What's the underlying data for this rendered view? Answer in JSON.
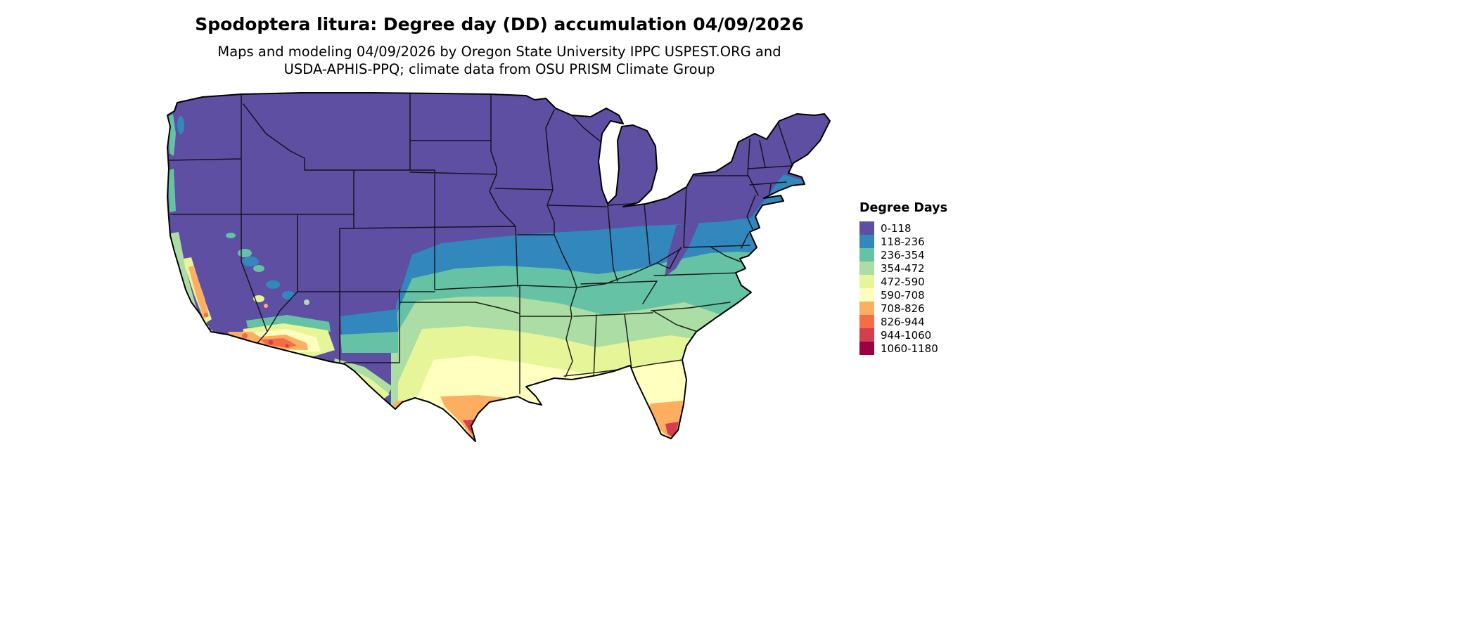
{
  "title": "Spodoptera litura: Degree day (DD) accumulation 04/09/2026",
  "subtitle_line1": "Maps and modeling 04/09/2026 by Oregon State University IPPC USPEST.ORG and",
  "subtitle_line2": "USDA-APHIS-PPQ; climate data from OSU PRISM Climate Group",
  "legend": {
    "title": "Degree Days",
    "items": [
      {
        "label": "0-118",
        "color": "#5e4fa2"
      },
      {
        "label": "118-236",
        "color": "#3288bd"
      },
      {
        "label": "236-354",
        "color": "#66c2a5"
      },
      {
        "label": "354-472",
        "color": "#abdda4"
      },
      {
        "label": "472-590",
        "color": "#e6f598"
      },
      {
        "label": "590-708",
        "color": "#ffffbf"
      },
      {
        "label": "708-826",
        "color": "#fdae61"
      },
      {
        "label": "826-944",
        "color": "#f46d43"
      },
      {
        "label": "944-1060",
        "color": "#d53e4f"
      },
      {
        "label": "1060-1180",
        "color": "#9e0142"
      }
    ]
  },
  "map_colors": {
    "outline_stroke": "#000000",
    "state_border_stroke": "#0d0d0d"
  }
}
